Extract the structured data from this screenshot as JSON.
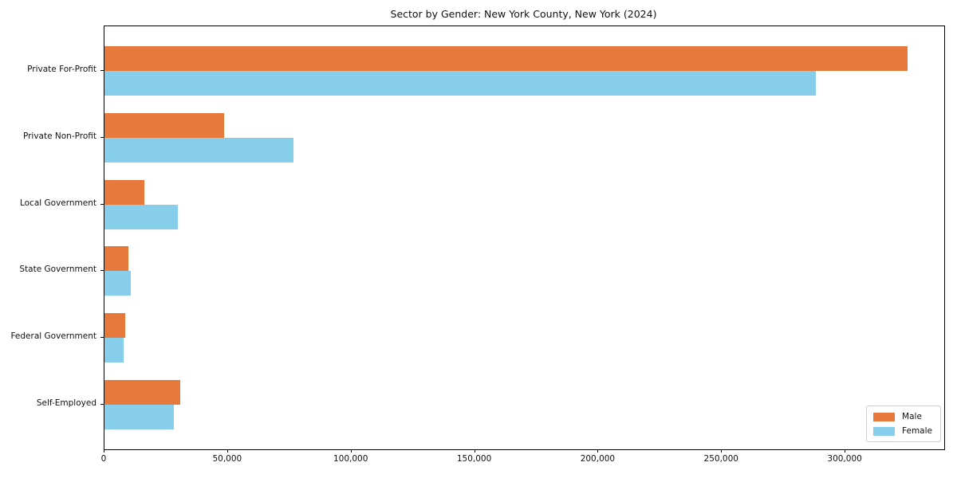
{
  "chart_data": {
    "type": "bar",
    "orientation": "horizontal",
    "title": "Sector by Gender: New York County, New York (2024)",
    "xlabel": "",
    "ylabel": "",
    "categories": [
      "Private For-Profit",
      "Private Non-Profit",
      "Local Government",
      "State Government",
      "Federal Government",
      "Self-Employed"
    ],
    "series": [
      {
        "name": "Male",
        "color": "#e8793c",
        "values": [
          325000,
          48500,
          16200,
          9700,
          8400,
          30700
        ]
      },
      {
        "name": "Female",
        "color": "#87ceeb",
        "values": [
          288000,
          76600,
          29700,
          10700,
          7800,
          28100
        ]
      }
    ],
    "xlim": [
      0,
      340000
    ],
    "x_ticks": [
      0,
      50000,
      100000,
      150000,
      200000,
      250000,
      300000
    ],
    "x_tick_labels": [
      "0",
      "50,000",
      "100,000",
      "150,000",
      "200,000",
      "250,000",
      "300,000"
    ],
    "grid": false,
    "legend_position": "lower right"
  },
  "colors": {
    "male": "#e8793c",
    "female": "#87ceeb",
    "axis": "#000000",
    "legend_border": "#cccccc",
    "background": "#ffffff"
  }
}
